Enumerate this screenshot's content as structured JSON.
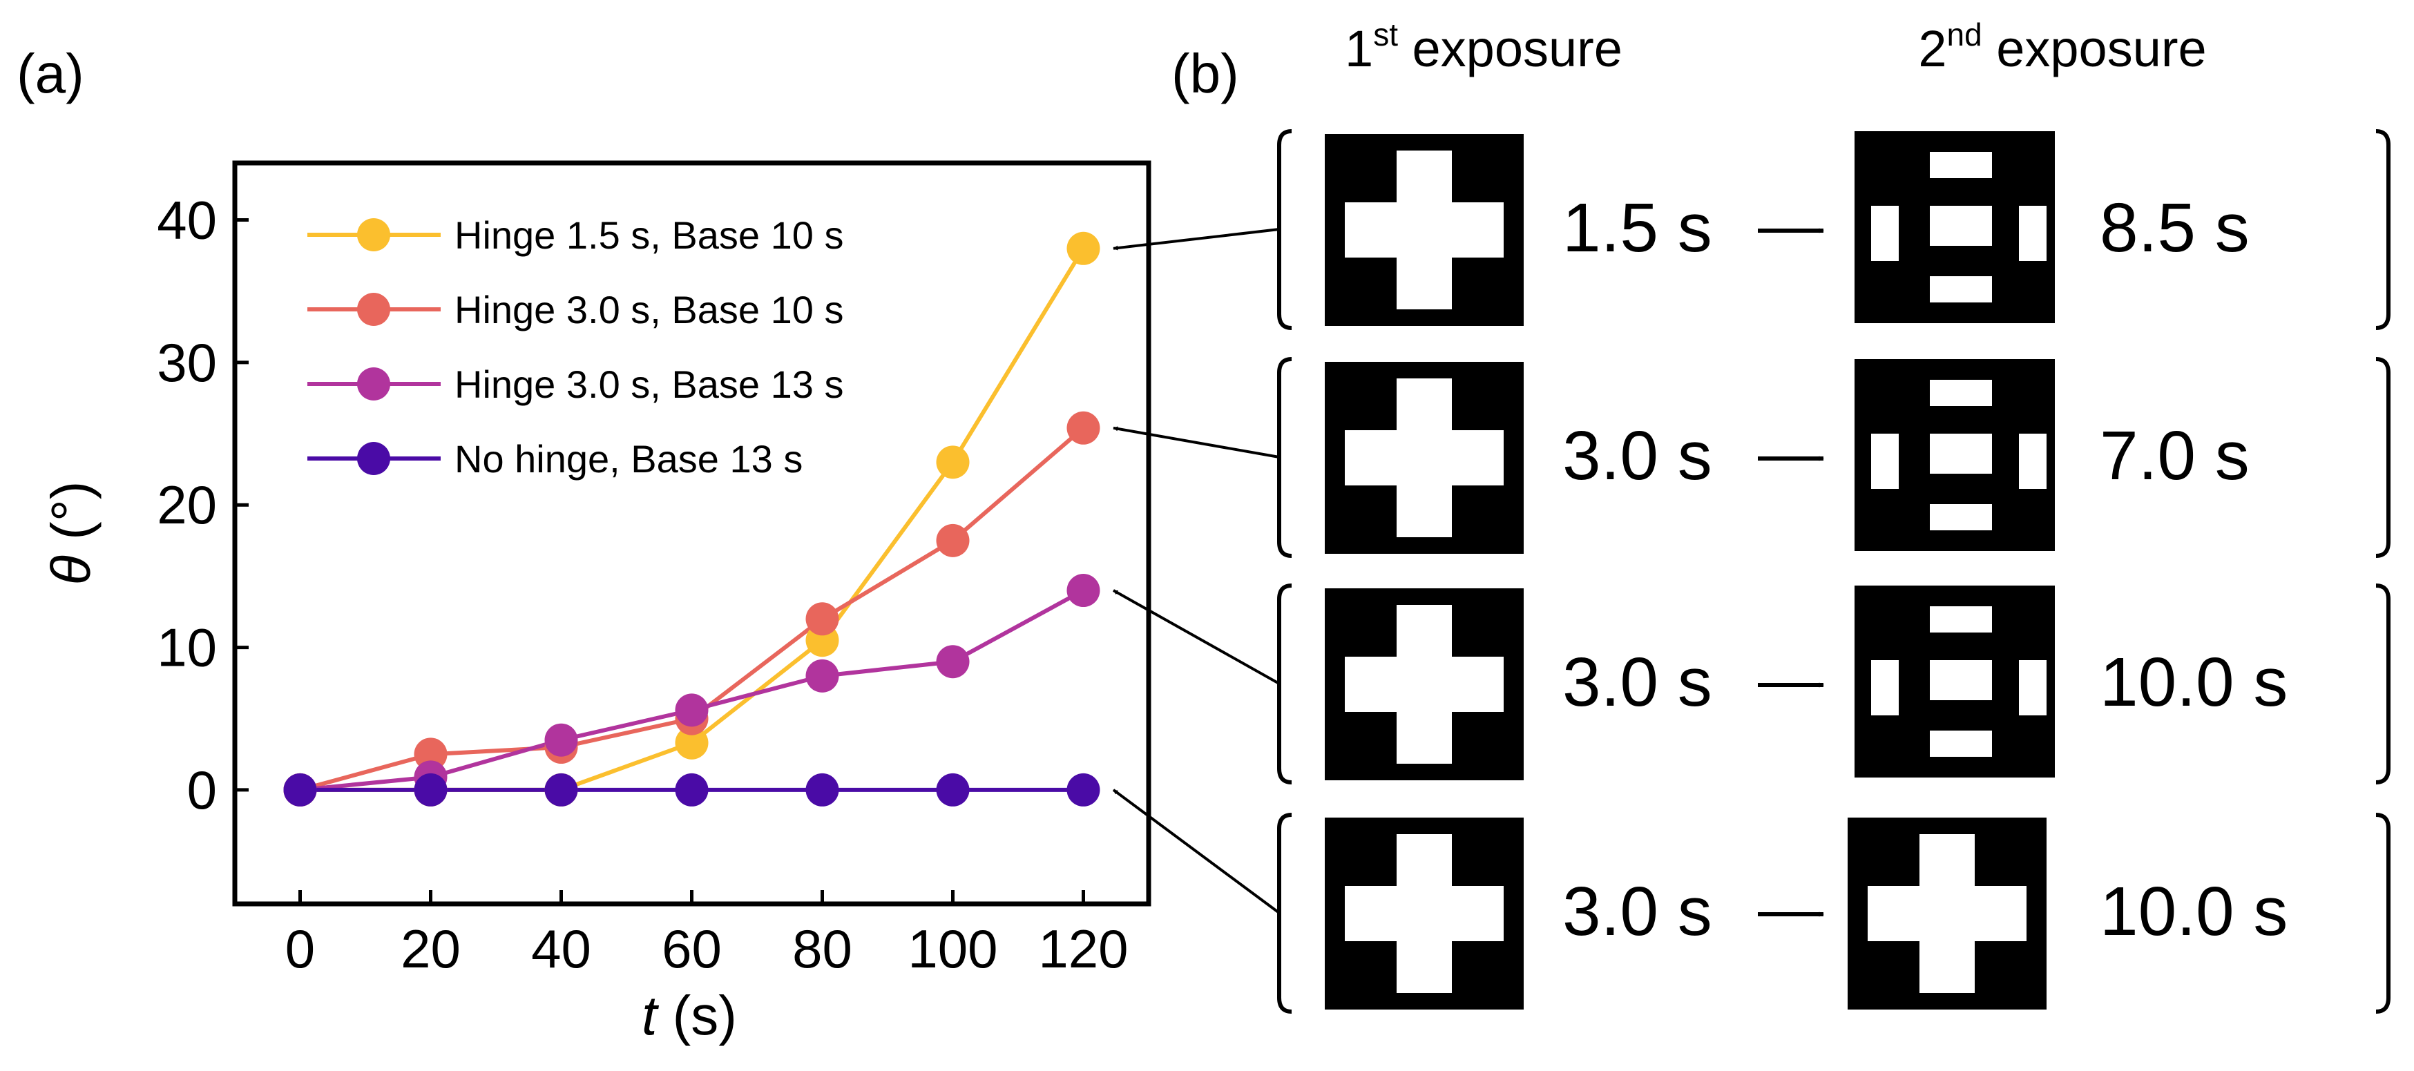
{
  "panel_a": {
    "label": "(a)"
  },
  "panel_b": {
    "label": "(b)",
    "header_first": {
      "prefix": "1",
      "sup": "st",
      "suffix": " exposure"
    },
    "header_second": {
      "prefix": "2",
      "sup": "nd",
      "suffix": " exposure"
    },
    "rows": [
      {
        "first": "1.5 s",
        "second": "8.5 s",
        "second_pattern": "hinge-mask-icon",
        "first_pattern": "cross-mask-icon",
        "targets_series": 0
      },
      {
        "first": "3.0 s",
        "second": "7.0 s",
        "second_pattern": "hinge-mask-icon",
        "first_pattern": "cross-mask-icon",
        "targets_series": 1
      },
      {
        "first": "3.0 s",
        "second": "10.0 s",
        "second_pattern": "hinge-mask-icon",
        "first_pattern": "cross-mask-icon",
        "targets_series": 2
      },
      {
        "first": "3.0 s",
        "second": "10.0 s",
        "second_pattern": "cross-mask-icon",
        "first_pattern": "cross-mask-icon",
        "targets_series": 3
      }
    ]
  },
  "chart_data": {
    "type": "line",
    "title": "",
    "xlabel": {
      "var": "t",
      "unit": " (s)"
    },
    "ylabel": {
      "var": "θ",
      "unit": " (°)"
    },
    "xlim": [
      -10,
      130
    ],
    "ylim": [
      -8,
      44
    ],
    "xticks": [
      0,
      20,
      40,
      60,
      80,
      100,
      120
    ],
    "yticks": [
      0,
      10,
      20,
      30,
      40
    ],
    "grid": false,
    "legend": "top-left",
    "x": [
      0,
      20,
      40,
      60,
      80,
      100,
      120
    ],
    "series": [
      {
        "name": "Hinge 1.5 s, Base 10 s",
        "color": "#fbbf2e",
        "values": [
          0,
          0,
          0,
          3.3,
          10.5,
          23,
          38
        ]
      },
      {
        "name": "Hinge 3.0 s, Base 10 s",
        "color": "#e8665c",
        "values": [
          0,
          2.5,
          3,
          5,
          12,
          17.5,
          25.4
        ]
      },
      {
        "name": "Hinge 3.0 s, Base 13 s",
        "color": "#b1349d",
        "values": [
          0,
          0.9,
          3.5,
          5.6,
          8,
          9,
          14
        ]
      },
      {
        "name": "No hinge, Base 13 s",
        "color": "#4a0ba6",
        "values": [
          0,
          0,
          0,
          0,
          0,
          0,
          0
        ]
      }
    ]
  }
}
